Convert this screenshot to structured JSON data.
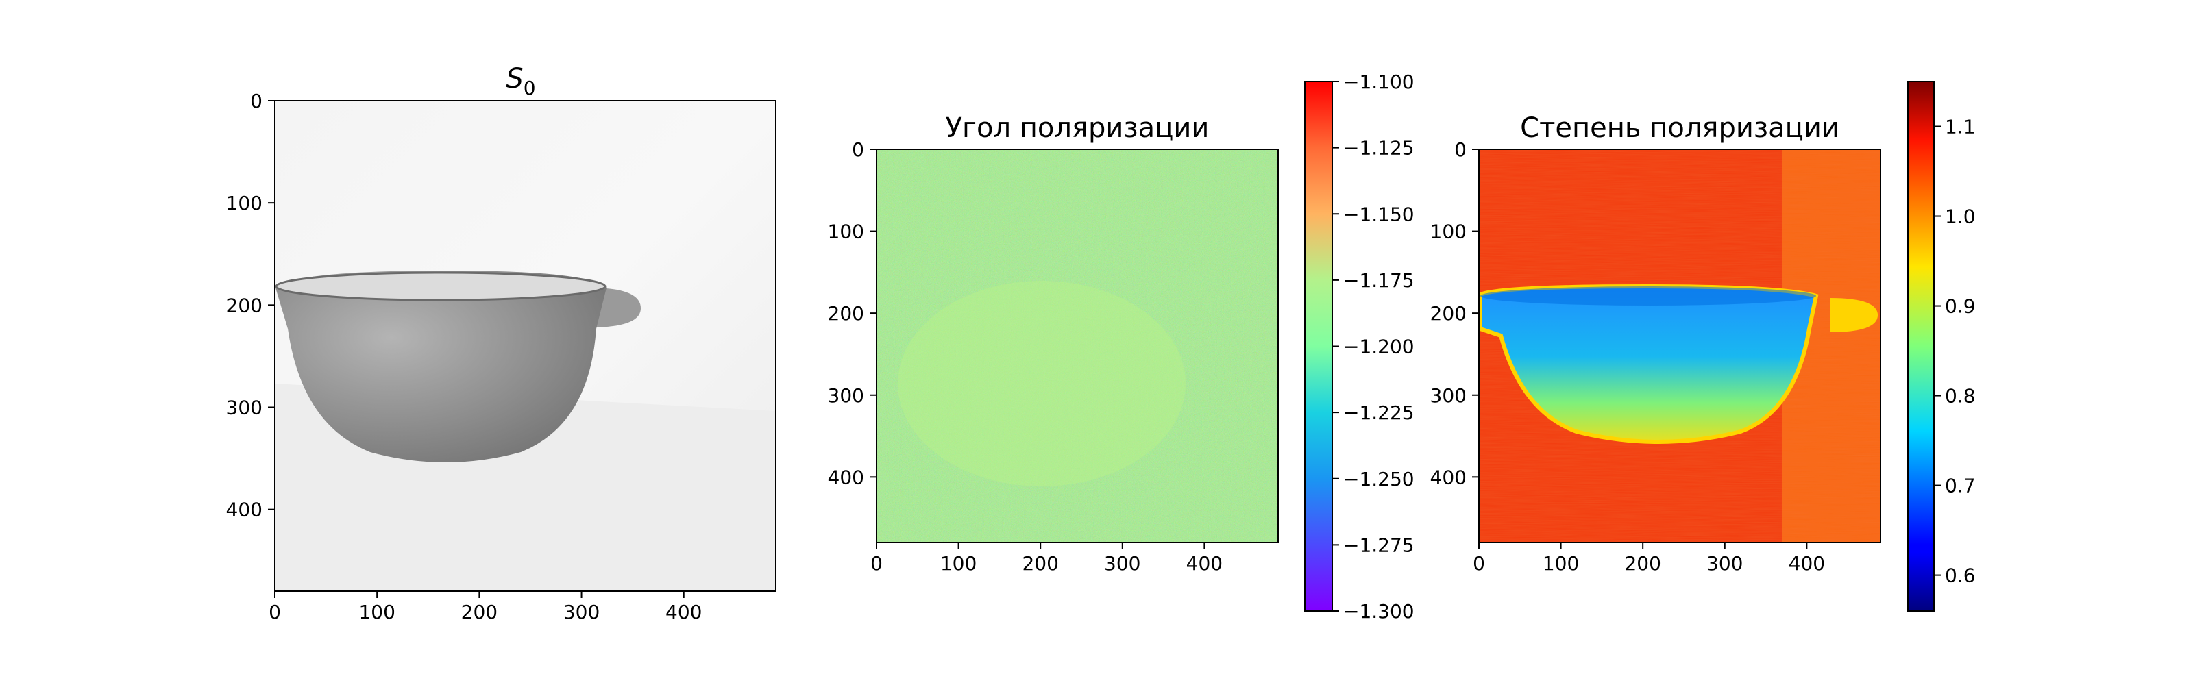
{
  "chart_data": [
    {
      "type": "heatmap",
      "title": "S",
      "title_subscript": "0",
      "colormap": "gray",
      "xlim": [
        0,
        490
      ],
      "ylim": [
        480,
        0
      ],
      "x_ticks": [
        "0",
        "100",
        "200",
        "300",
        "400"
      ],
      "y_ticks": [
        "0",
        "100",
        "200",
        "300",
        "400"
      ],
      "content": "grayscale intensity image of a bowl with handle"
    },
    {
      "type": "heatmap",
      "title": "Угол поляризации",
      "colormap": "rainbow",
      "xlim": [
        0,
        490
      ],
      "ylim": [
        480,
        0
      ],
      "x_ticks": [
        "0",
        "100",
        "200",
        "300",
        "400"
      ],
      "y_ticks": [
        "0",
        "100",
        "200",
        "300",
        "400"
      ],
      "colorbar": {
        "range": [
          -1.3,
          -1.1
        ],
        "ticks": [
          "−1.100",
          "−1.125",
          "−1.150",
          "−1.175",
          "−1.200",
          "−1.225",
          "−1.250",
          "−1.275",
          "−1.300"
        ]
      }
    },
    {
      "type": "heatmap",
      "title": "Степень поляризации",
      "colormap": "jet",
      "xlim": [
        0,
        490
      ],
      "ylim": [
        480,
        0
      ],
      "x_ticks": [
        "0",
        "100",
        "200",
        "300",
        "400"
      ],
      "y_ticks": [
        "0",
        "100",
        "200",
        "300",
        "400"
      ],
      "colorbar": {
        "range": [
          0.56,
          1.15
        ],
        "ticks": [
          "1.1",
          "1.0",
          "0.9",
          "0.8",
          "0.7",
          "0.6"
        ]
      }
    }
  ]
}
